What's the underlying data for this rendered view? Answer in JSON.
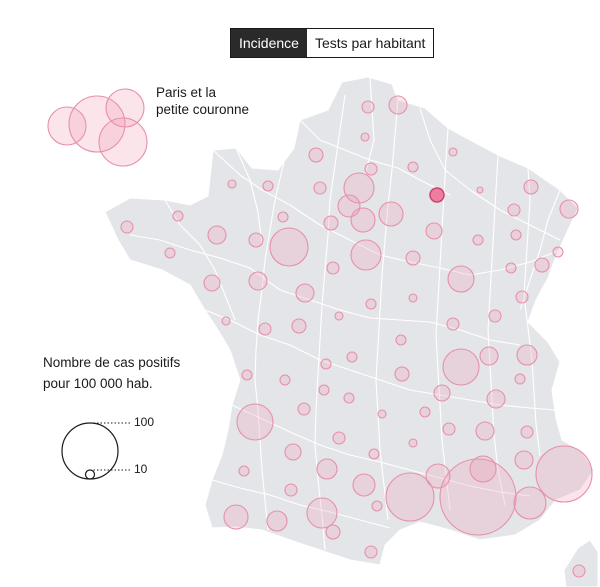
{
  "toggle": {
    "options": [
      {
        "label": "Incidence",
        "active": true
      },
      {
        "label": "Tests par habitant",
        "active": false
      }
    ]
  },
  "paris_label": {
    "line1": "Paris et la",
    "line2": "petite couronne"
  },
  "legend": {
    "title_line1": "Nombre de cas positifs",
    "title_line2": "pour 100 000 hab.",
    "reference_values": [
      100,
      10
    ]
  },
  "colors": {
    "land": "#e4e5e8",
    "borders": "#ffffff",
    "bubble_fill": "rgba(238,150,176,0.25)",
    "bubble_stroke": "#e690aa",
    "highlight_fill": "#ee7e9f",
    "highlight_stroke": "#c84670"
  }
}
